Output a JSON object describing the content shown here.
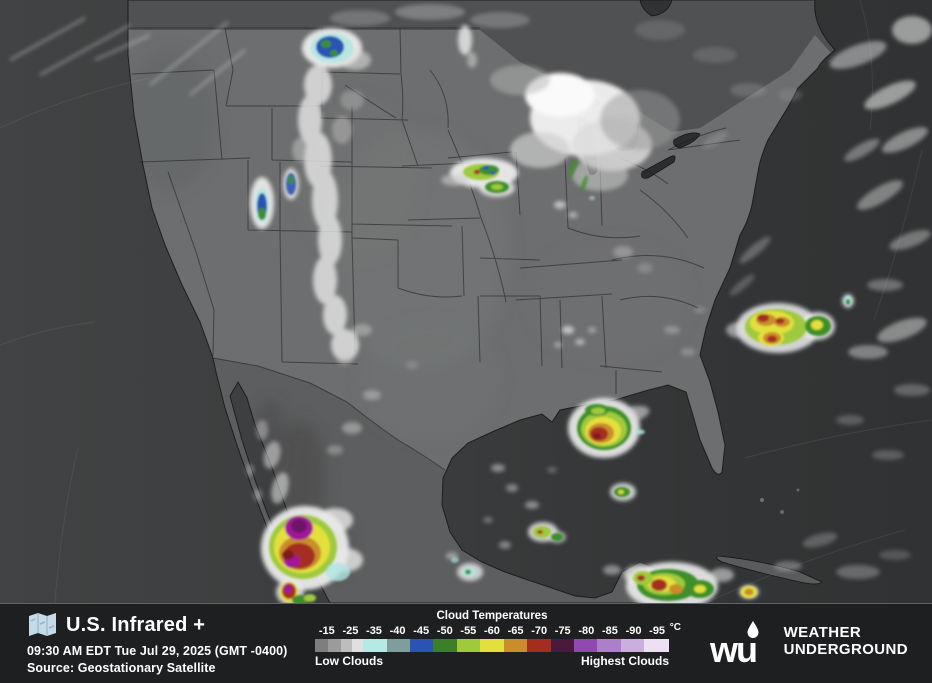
{
  "info": {
    "title": "U.S. Infrared +",
    "timestamp": "09:30 AM EDT Tue Jul 29, 2025 (GMT -0400)",
    "source": "Source: Geostationary Satellite"
  },
  "legend": {
    "title": "Cloud Temperatures",
    "unit": "°C",
    "ticks": [
      "-15",
      "-25",
      "-35",
      "-40",
      "-45",
      "-50",
      "-55",
      "-60",
      "-65",
      "-70",
      "-75",
      "-80",
      "-85",
      "-90",
      "-95"
    ],
    "low_label": "Low Clouds",
    "high_label": "Highest Clouds",
    "segments": [
      {
        "color": "#7e7e7e",
        "width": 13
      },
      {
        "color": "#9b9b9b",
        "width": 13
      },
      {
        "color": "#bdbdbd",
        "width": 11
      },
      {
        "color": "#e0e0e0",
        "width": 11
      },
      {
        "color": "#b4e9e5",
        "width": 24
      },
      {
        "color": "#7f9d9d",
        "width": 23
      },
      {
        "color": "#2b53b4",
        "width": 23
      },
      {
        "color": "#3d7f27",
        "width": 24
      },
      {
        "color": "#9fca3c",
        "width": 23
      },
      {
        "color": "#e3df3e",
        "width": 24
      },
      {
        "color": "#c98d2b",
        "width": 23
      },
      {
        "color": "#a52d20",
        "width": 24
      },
      {
        "color": "#4a1a3e",
        "width": 23
      },
      {
        "color": "#9049ae",
        "width": 23
      },
      {
        "color": "#ad7fca",
        "width": 24
      },
      {
        "color": "#cbaede",
        "width": 23
      },
      {
        "color": "#eee0f3",
        "width": 25
      }
    ]
  },
  "brand": {
    "logo_text": "wu",
    "name_line1": "WEATHER",
    "name_line2": "UNDERGROUND"
  },
  "colors": {
    "bar_background": "#1d1f21",
    "map_icon": "#c6dbe8",
    "text": "#ffffff"
  }
}
